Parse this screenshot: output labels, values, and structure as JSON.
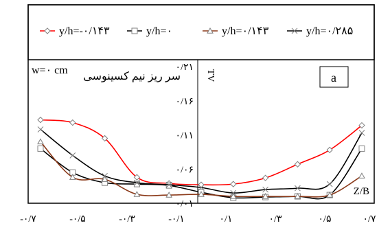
{
  "chart_data": {
    "type": "line",
    "title": "",
    "xlabel": "Z/B",
    "ylabel": "TV",
    "panel_label": "a",
    "annotation": "سر ریز نیم کسینوسی",
    "annotation_w": "w=۰ cm",
    "xlim": [
      -0.7,
      0.7
    ],
    "ylim": [
      0.01,
      0.21
    ],
    "x_ticks": [
      {
        "value": -0.7,
        "label": "-۰/۷"
      },
      {
        "value": -0.5,
        "label": "-۰/۵"
      },
      {
        "value": -0.3,
        "label": "-۰/۳"
      },
      {
        "value": -0.1,
        "label": "-۰/۱"
      },
      {
        "value": 0.1,
        "label": "۰/۱"
      },
      {
        "value": 0.3,
        "label": "۰/۳"
      },
      {
        "value": 0.5,
        "label": "۰/۵"
      },
      {
        "value": 0.7,
        "label": "۰/۷"
      }
    ],
    "y_ticks": [
      {
        "value": 0.01,
        "label": "۰/۰۱"
      },
      {
        "value": 0.06,
        "label": "۰/۰۶"
      },
      {
        "value": 0.11,
        "label": "۰/۱۱"
      },
      {
        "value": 0.16,
        "label": "۰/۱۶"
      },
      {
        "value": 0.21,
        "label": "۰/۲۱"
      }
    ],
    "grid": false,
    "legend_position": "top",
    "x": [
      -0.65,
      -0.52,
      -0.39,
      -0.26,
      -0.13,
      0.0,
      0.13,
      0.26,
      0.39,
      0.52,
      0.65
    ],
    "series": [
      {
        "name": "y/h=-۰/۱۴۳",
        "marker": "diamond",
        "color": "#ff0000",
        "markerColor": "#808080",
        "values": [
          0.132,
          0.128,
          0.105,
          0.048,
          0.039,
          0.037,
          0.038,
          0.047,
          0.067,
          0.088,
          0.124
        ]
      },
      {
        "name": "y/h=۰",
        "marker": "square",
        "color": "#000000",
        "markerColor": "#808080",
        "values": [
          0.09,
          0.055,
          0.04,
          0.038,
          0.036,
          0.026,
          0.018,
          0.019,
          0.02,
          0.022,
          0.09
        ]
      },
      {
        "name": "y/h=۰/۱۴۳",
        "marker": "triangle",
        "color": "#8b3a1a",
        "markerColor": "#808080",
        "values": [
          0.1,
          0.048,
          0.045,
          0.023,
          0.022,
          0.023,
          0.02,
          0.02,
          0.02,
          0.022,
          0.05
        ]
      },
      {
        "name": "y/h=۰/۲۸۵",
        "marker": "x",
        "color": "#000000",
        "markerColor": "#808080",
        "values": [
          0.118,
          0.08,
          0.05,
          0.04,
          0.037,
          0.033,
          0.025,
          0.03,
          0.032,
          0.038,
          0.113
        ]
      }
    ]
  }
}
